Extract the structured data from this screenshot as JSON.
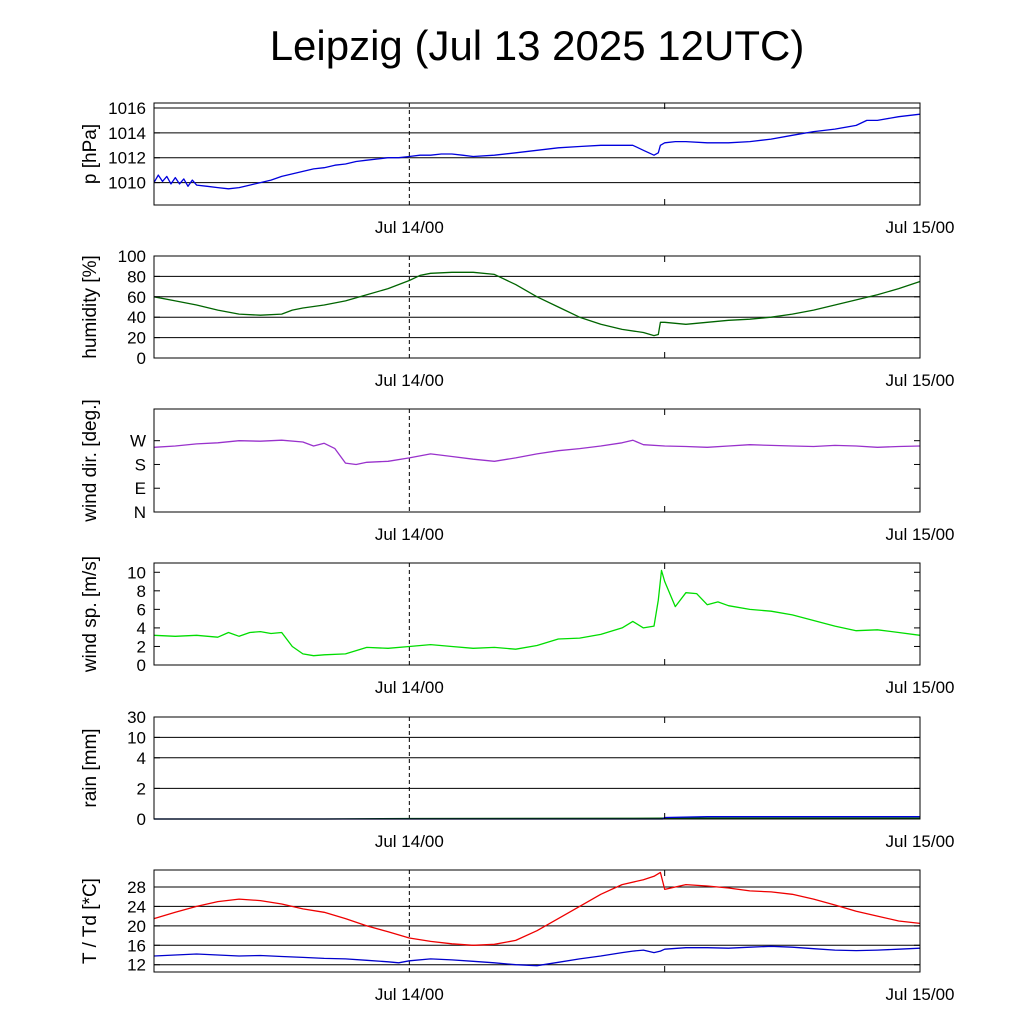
{
  "title": "Leipzig (Jul 13 2025 12UTC)",
  "chart_data": [
    {
      "type": "line",
      "ylabel": "p [hPa]",
      "scale": "linear",
      "ylim": [
        1008.2,
        1016.4
      ],
      "yticks": [
        1010,
        1012,
        1014,
        1016
      ],
      "grid": [
        1010,
        1012,
        1014,
        1016
      ],
      "x_axis": {
        "unit": "hours since Jul 13 12UTC",
        "range": [
          0,
          36
        ],
        "ticks": [
          {
            "hour": 12,
            "label": "Jul 14/00"
          },
          {
            "hour": 36,
            "label": "Jul 15/00"
          }
        ],
        "minor_ticks": [
          24
        ],
        "dashed_marker": 12
      },
      "series": [
        {
          "color": "#0000dd",
          "x": [
            0,
            0.2,
            0.4,
            0.6,
            0.8,
            1,
            1.2,
            1.4,
            1.6,
            1.8,
            2,
            2.5,
            3,
            3.5,
            4,
            4.5,
            5,
            5.5,
            6,
            6.5,
            7,
            7.5,
            8,
            8.5,
            9,
            9.5,
            10,
            10.5,
            11,
            11.5,
            12,
            12.5,
            13,
            13.5,
            14,
            14.5,
            15,
            16,
            17,
            18,
            19,
            20,
            21,
            22,
            22.5,
            23,
            23.5,
            23.7,
            23.8,
            24,
            24.5,
            25,
            26,
            27,
            28,
            29,
            30,
            31,
            32,
            33,
            33.5,
            34,
            35,
            36
          ],
          "y": [
            1010.0,
            1010.6,
            1010.1,
            1010.5,
            1009.9,
            1010.4,
            1009.9,
            1010.3,
            1009.7,
            1010.2,
            1009.8,
            1009.7,
            1009.6,
            1009.5,
            1009.6,
            1009.8,
            1010.0,
            1010.2,
            1010.5,
            1010.7,
            1010.9,
            1011.1,
            1011.2,
            1011.4,
            1011.5,
            1011.7,
            1011.8,
            1011.9,
            1012.0,
            1012.0,
            1012.1,
            1012.2,
            1012.2,
            1012.3,
            1012.3,
            1012.2,
            1012.1,
            1012.2,
            1012.4,
            1012.6,
            1012.8,
            1012.9,
            1013.0,
            1013.0,
            1013.0,
            1012.6,
            1012.2,
            1012.4,
            1013.0,
            1013.2,
            1013.3,
            1013.3,
            1013.2,
            1013.2,
            1013.3,
            1013.5,
            1013.8,
            1014.1,
            1014.3,
            1014.6,
            1015.0,
            1015.0,
            1015.3,
            1015.5
          ]
        }
      ]
    },
    {
      "type": "line",
      "ylabel": "humidity [%]",
      "scale": "linear",
      "ylim": [
        0,
        100
      ],
      "yticks": [
        0,
        20,
        40,
        60,
        80,
        100
      ],
      "grid": [
        20,
        40,
        60,
        80
      ],
      "x_axis": {
        "unit": "hours since Jul 13 12UTC",
        "range": [
          0,
          36
        ],
        "ticks": [
          {
            "hour": 12,
            "label": "Jul 14/00"
          },
          {
            "hour": 36,
            "label": "Jul 15/00"
          }
        ],
        "minor_ticks": [
          24
        ],
        "dashed_marker": 12
      },
      "series": [
        {
          "color": "#006400",
          "x": [
            0,
            1,
            2,
            3,
            4,
            5,
            6,
            6.5,
            7,
            8,
            9,
            10,
            11,
            12,
            12.5,
            13,
            14,
            15,
            16,
            17,
            18,
            19,
            20,
            21,
            22,
            23,
            23.5,
            23.7,
            23.8,
            24,
            25,
            26,
            27,
            28,
            29,
            30,
            31,
            32,
            33,
            34,
            35,
            36
          ],
          "y": [
            60,
            56,
            52,
            47,
            43,
            42,
            43,
            47,
            49,
            52,
            56,
            62,
            68,
            76,
            81,
            83,
            84,
            84,
            82,
            72,
            60,
            50,
            40,
            33,
            28,
            25,
            22,
            23,
            35,
            35,
            33,
            35,
            37,
            38,
            40,
            43,
            47,
            52,
            57,
            62,
            68,
            75
          ]
        }
      ]
    },
    {
      "type": "line",
      "ylabel": "wind dir. [deg.]",
      "scale": "linear",
      "ylim": [
        0,
        390
      ],
      "yticks": [
        0,
        90,
        180,
        270
      ],
      "ytick_labels": [
        "N",
        "E",
        "S",
        "W"
      ],
      "grid": [],
      "x_axis": {
        "unit": "hours since Jul 13 12UTC",
        "range": [
          0,
          36
        ],
        "ticks": [
          {
            "hour": 12,
            "label": "Jul 14/00"
          },
          {
            "hour": 36,
            "label": "Jul 15/00"
          }
        ],
        "minor_ticks": [
          24
        ],
        "dashed_marker": 12
      },
      "series": [
        {
          "color": "#9932cc",
          "x": [
            0,
            1,
            2,
            3,
            4,
            5,
            6,
            7,
            7.5,
            8,
            8.5,
            9,
            9.5,
            10,
            11,
            12,
            13,
            14,
            15,
            16,
            17,
            18,
            19,
            20,
            21,
            22,
            22.5,
            23,
            24,
            25,
            26,
            27,
            28,
            29,
            30,
            31,
            32,
            33,
            34,
            35,
            36
          ],
          "y": [
            245,
            250,
            258,
            262,
            270,
            268,
            272,
            265,
            250,
            260,
            240,
            185,
            180,
            188,
            192,
            205,
            220,
            210,
            200,
            192,
            205,
            220,
            232,
            240,
            250,
            262,
            272,
            255,
            250,
            248,
            245,
            250,
            255,
            252,
            250,
            248,
            252,
            250,
            245,
            248,
            250
          ]
        }
      ]
    },
    {
      "type": "line",
      "ylabel": "wind sp. [m/s]",
      "scale": "linear",
      "ylim": [
        0,
        11
      ],
      "yticks": [
        0,
        2,
        4,
        6,
        8,
        10
      ],
      "grid": [],
      "x_axis": {
        "unit": "hours since Jul 13 12UTC",
        "range": [
          0,
          36
        ],
        "ticks": [
          {
            "hour": 12,
            "label": "Jul 14/00"
          },
          {
            "hour": 36,
            "label": "Jul 15/00"
          }
        ],
        "minor_ticks": [
          24
        ],
        "dashed_marker": 12
      },
      "series": [
        {
          "color": "#00dd00",
          "x": [
            0,
            1,
            2,
            3,
            3.5,
            4,
            4.5,
            5,
            5.5,
            6,
            6.5,
            7,
            7.5,
            8,
            9,
            10,
            11,
            12,
            13,
            14,
            15,
            16,
            17,
            18,
            19,
            20,
            21,
            22,
            22.5,
            23,
            23.5,
            23.7,
            23.85,
            24,
            24.5,
            25,
            25.5,
            26,
            26.5,
            27,
            28,
            29,
            30,
            31,
            32,
            33,
            34,
            35,
            36
          ],
          "y": [
            3.2,
            3.1,
            3.2,
            3.0,
            3.5,
            3.1,
            3.5,
            3.6,
            3.4,
            3.5,
            2.0,
            1.2,
            1.0,
            1.1,
            1.2,
            1.9,
            1.8,
            2.0,
            2.2,
            2.0,
            1.8,
            1.9,
            1.7,
            2.1,
            2.8,
            2.9,
            3.3,
            4.0,
            4.7,
            4.0,
            4.2,
            7.0,
            10.2,
            9.0,
            6.3,
            7.8,
            7.7,
            6.5,
            6.8,
            6.4,
            6.0,
            5.8,
            5.4,
            4.8,
            4.2,
            3.7,
            3.8,
            3.5,
            3.2
          ]
        }
      ]
    },
    {
      "type": "line",
      "ylabel": "rain [mm]",
      "scale": "custom",
      "ylim": [
        0,
        30
      ],
      "yticks": [
        0,
        2,
        4,
        10,
        30
      ],
      "ytick_positions": [
        0,
        0.3,
        0.6,
        0.8,
        1.0
      ],
      "grid": [
        2,
        4,
        10,
        30
      ],
      "x_axis": {
        "unit": "hours since Jul 13 12UTC",
        "range": [
          0,
          36
        ],
        "ticks": [
          {
            "hour": 12,
            "label": "Jul 14/00"
          },
          {
            "hour": 36,
            "label": "Jul 15/00"
          }
        ],
        "minor_ticks": [
          24
        ],
        "dashed_marker": 12
      },
      "series": [
        {
          "color": "#006400",
          "x": [
            0,
            8,
            12,
            24,
            36
          ],
          "y": [
            0,
            0,
            0.03,
            0.05,
            0.05
          ]
        },
        {
          "color": "#0000dd",
          "x": [
            0,
            12,
            23.9,
            24,
            26,
            36
          ],
          "y": [
            0,
            0,
            0,
            0.1,
            0.15,
            0.15
          ]
        }
      ]
    },
    {
      "type": "line",
      "ylabel": "T / Td [*C]",
      "scale": "linear",
      "ylim": [
        10.5,
        31.5
      ],
      "yticks": [
        12,
        16,
        20,
        24,
        28
      ],
      "grid": [
        12,
        16,
        20,
        24,
        28
      ],
      "x_axis": {
        "unit": "hours since Jul 13 12UTC",
        "range": [
          0,
          36
        ],
        "ticks": [
          {
            "hour": 12,
            "label": "Jul 14/00"
          },
          {
            "hour": 36,
            "label": "Jul 15/00"
          }
        ],
        "minor_ticks": [
          24
        ],
        "dashed_marker": 12
      },
      "series": [
        {
          "color": "#ee0000",
          "x": [
            0,
            1,
            2,
            3,
            4,
            5,
            6,
            7,
            8,
            9,
            10,
            11,
            12,
            13,
            14,
            15,
            16,
            17,
            18,
            19,
            20,
            21,
            22,
            23,
            23.5,
            23.8,
            24,
            24.5,
            25,
            26,
            27,
            28,
            29,
            30,
            31,
            32,
            33,
            34,
            35,
            36
          ],
          "y": [
            21.5,
            22.8,
            24.0,
            25.0,
            25.5,
            25.2,
            24.5,
            23.5,
            22.8,
            21.5,
            20.0,
            18.8,
            17.5,
            16.8,
            16.3,
            16.0,
            16.2,
            17.0,
            19.0,
            21.5,
            24.0,
            26.5,
            28.5,
            29.5,
            30.2,
            31.0,
            27.5,
            28.0,
            28.5,
            28.2,
            27.8,
            27.2,
            27.0,
            26.5,
            25.5,
            24.3,
            23.0,
            22.0,
            21.0,
            20.5
          ]
        },
        {
          "color": "#0000cc",
          "x": [
            0,
            1,
            2,
            3,
            4,
            5,
            6,
            7,
            8,
            9,
            10,
            11,
            11.5,
            12,
            13,
            14,
            15,
            16,
            17,
            18,
            19,
            20,
            21,
            22,
            22.5,
            23,
            23.5,
            23.8,
            24,
            25,
            26,
            27,
            28,
            29,
            30,
            31,
            32,
            33,
            34,
            35,
            36
          ],
          "y": [
            13.8,
            14.0,
            14.2,
            14.0,
            13.8,
            13.9,
            13.7,
            13.5,
            13.3,
            13.2,
            12.9,
            12.6,
            12.4,
            12.8,
            13.2,
            13.0,
            12.7,
            12.4,
            12.0,
            11.8,
            12.5,
            13.2,
            13.8,
            14.5,
            14.8,
            15.0,
            14.5,
            14.8,
            15.2,
            15.5,
            15.5,
            15.4,
            15.6,
            15.8,
            15.6,
            15.3,
            15.0,
            14.9,
            15.0,
            15.2,
            15.4
          ]
        }
      ]
    }
  ]
}
